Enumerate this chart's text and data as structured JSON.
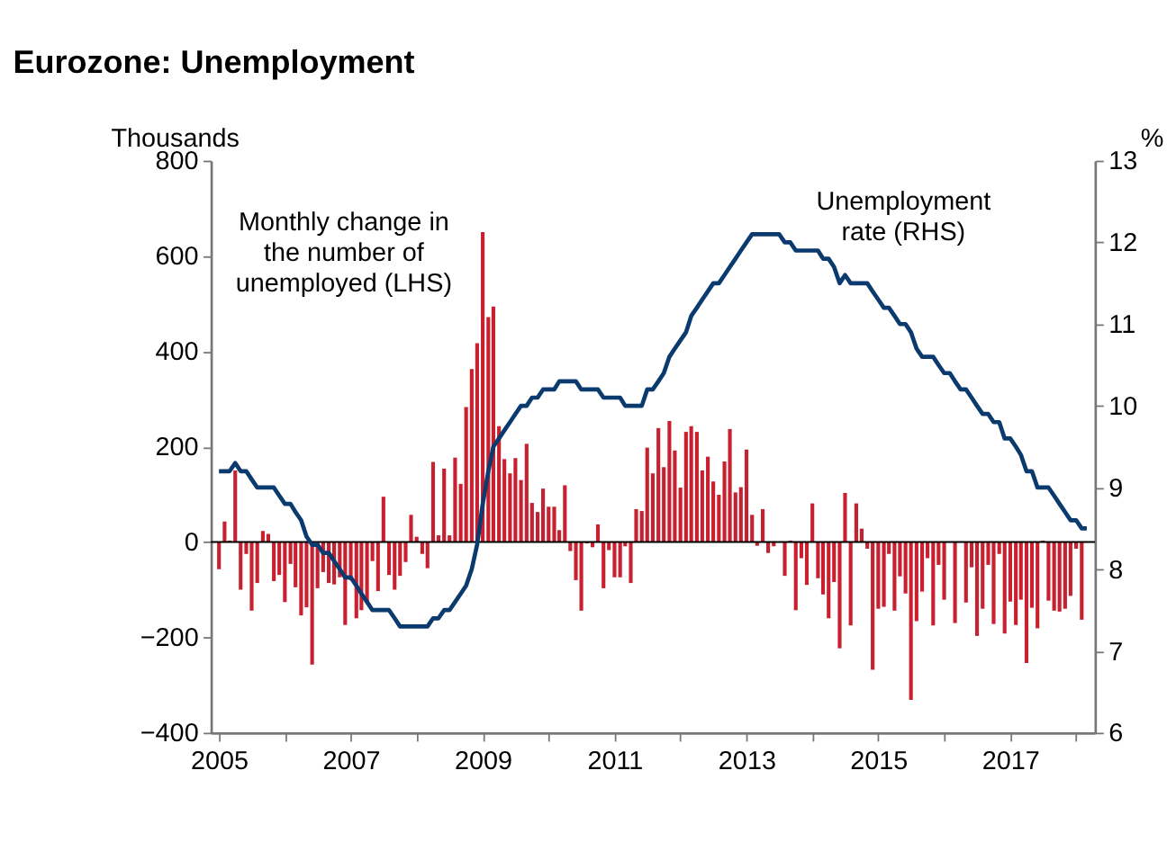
{
  "chart_data": {
    "type": "bar",
    "title": "Eurozone: Unemployment",
    "ylabel": "Thousands",
    "y2label": "%",
    "x": [
      "2005-01",
      "2005-02",
      "2005-03",
      "2005-04",
      "2005-05",
      "2005-06",
      "2005-07",
      "2005-08",
      "2005-09",
      "2005-10",
      "2005-11",
      "2005-12",
      "2006-01",
      "2006-02",
      "2006-03",
      "2006-04",
      "2006-05",
      "2006-06",
      "2006-07",
      "2006-08",
      "2006-09",
      "2006-10",
      "2006-11",
      "2006-12",
      "2007-01",
      "2007-02",
      "2007-03",
      "2007-04",
      "2007-05",
      "2007-06",
      "2007-07",
      "2007-08",
      "2007-09",
      "2007-10",
      "2007-11",
      "2007-12",
      "2008-01",
      "2008-02",
      "2008-03",
      "2008-04",
      "2008-05",
      "2008-06",
      "2008-07",
      "2008-08",
      "2008-09",
      "2008-10",
      "2008-11",
      "2008-12",
      "2009-01",
      "2009-02",
      "2009-03",
      "2009-04",
      "2009-05",
      "2009-06",
      "2009-07",
      "2009-08",
      "2009-09",
      "2009-10",
      "2009-11",
      "2009-12",
      "2010-01",
      "2010-02",
      "2010-03",
      "2010-04",
      "2010-05",
      "2010-06",
      "2010-07",
      "2010-08",
      "2010-09",
      "2010-10",
      "2010-11",
      "2010-12",
      "2011-01",
      "2011-02",
      "2011-03",
      "2011-04",
      "2011-05",
      "2011-06",
      "2011-07",
      "2011-08",
      "2011-09",
      "2011-10",
      "2011-11",
      "2011-12",
      "2012-01",
      "2012-02",
      "2012-03",
      "2012-04",
      "2012-05",
      "2012-06",
      "2012-07",
      "2012-08",
      "2012-09",
      "2012-10",
      "2012-11",
      "2012-12",
      "2013-01",
      "2013-02",
      "2013-03",
      "2013-04",
      "2013-05",
      "2013-06",
      "2013-07",
      "2013-08",
      "2013-09",
      "2013-10",
      "2013-11",
      "2013-12",
      "2014-01",
      "2014-02",
      "2014-03",
      "2014-04",
      "2014-05",
      "2014-06",
      "2014-07",
      "2014-08",
      "2014-09",
      "2014-10",
      "2014-11",
      "2014-12",
      "2015-01",
      "2015-02",
      "2015-03",
      "2015-04",
      "2015-05",
      "2015-06",
      "2015-07",
      "2015-08",
      "2015-09",
      "2015-10",
      "2015-11",
      "2015-12",
      "2016-01",
      "2016-02",
      "2016-03",
      "2016-04",
      "2016-05",
      "2016-06",
      "2016-07",
      "2016-08",
      "2016-09",
      "2016-10",
      "2016-11",
      "2016-12",
      "2017-01",
      "2017-02",
      "2017-03",
      "2017-04",
      "2017-05",
      "2017-06",
      "2017-07",
      "2017-08",
      "2017-09",
      "2017-10",
      "2017-11",
      "2017-12",
      "2018-01",
      "2018-02",
      "2018-03"
    ],
    "series": [
      {
        "name": "Monthly change in the number of unemployed (LHS)",
        "color": "#c8202f",
        "values": [
          -57,
          43,
          3,
          150,
          -100,
          -25,
          -144,
          -86,
          23,
          17,
          -82,
          -69,
          -126,
          -46,
          -95,
          -154,
          -137,
          -257,
          -97,
          -63,
          -86,
          -89,
          -74,
          -174,
          -80,
          -160,
          -143,
          -126,
          -40,
          -103,
          95,
          -69,
          -100,
          -71,
          -42,
          57,
          11,
          -25,
          -55,
          168,
          14,
          154,
          14,
          177,
          122,
          283,
          363,
          417,
          650,
          472,
          494,
          243,
          174,
          144,
          176,
          130,
          206,
          82,
          63,
          112,
          74,
          74,
          25,
          119,
          -19,
          -80,
          -144,
          -3,
          -11,
          37,
          -97,
          -17,
          -74,
          -74,
          -9,
          -86,
          69,
          65,
          198,
          144,
          239,
          157,
          254,
          192,
          114,
          231,
          243,
          231,
          150,
          179,
          127,
          99,
          169,
          237,
          104,
          115,
          194,
          57,
          -8,
          69,
          -23,
          -9,
          0,
          -71,
          3,
          -143,
          -34,
          -90,
          81,
          -76,
          -110,
          -160,
          -84,
          -223,
          103,
          -175,
          81,
          28,
          -14,
          -268,
          -140,
          -136,
          -25,
          -144,
          -72,
          -108,
          -331,
          -166,
          -104,
          -34,
          -175,
          -48,
          -121,
          0,
          -170,
          1,
          -127,
          -53,
          -197,
          -140,
          -48,
          -172,
          -25,
          -192,
          -125,
          -174,
          -121,
          -254,
          -138,
          -181,
          3,
          -123,
          -144,
          -146,
          -140,
          -113,
          -14,
          -163,
          null
        ]
      },
      {
        "name": "Unemployment rate (RHS)",
        "type": "line",
        "axis": "y2",
        "color": "#0b3a6e",
        "values": [
          9.2,
          9.2,
          9.2,
          9.3,
          9.2,
          9.2,
          9.1,
          9.0,
          9.0,
          9.0,
          9.0,
          8.9,
          8.8,
          8.8,
          8.7,
          8.6,
          8.4,
          8.3,
          8.3,
          8.2,
          8.2,
          8.1,
          8.0,
          7.9,
          7.9,
          7.8,
          7.7,
          7.6,
          7.5,
          7.5,
          7.5,
          7.5,
          7.4,
          7.3,
          7.3,
          7.3,
          7.3,
          7.3,
          7.3,
          7.4,
          7.4,
          7.5,
          7.5,
          7.6,
          7.7,
          7.8,
          8.0,
          8.3,
          8.8,
          9.2,
          9.5,
          9.6,
          9.7,
          9.8,
          9.9,
          10.0,
          10.0,
          10.1,
          10.1,
          10.2,
          10.2,
          10.2,
          10.3,
          10.3,
          10.3,
          10.3,
          10.2,
          10.2,
          10.2,
          10.2,
          10.1,
          10.1,
          10.1,
          10.1,
          10.0,
          10.0,
          10.0,
          10.0,
          10.2,
          10.2,
          10.3,
          10.4,
          10.6,
          10.7,
          10.8,
          10.9,
          11.1,
          11.2,
          11.3,
          11.4,
          11.5,
          11.5,
          11.6,
          11.7,
          11.8,
          11.9,
          12.0,
          12.1,
          12.1,
          12.1,
          12.1,
          12.1,
          12.1,
          12.0,
          12.0,
          11.9,
          11.9,
          11.9,
          11.9,
          11.9,
          11.8,
          11.8,
          11.7,
          11.5,
          11.6,
          11.5,
          11.5,
          11.5,
          11.5,
          11.4,
          11.3,
          11.2,
          11.2,
          11.1,
          11.0,
          11.0,
          10.9,
          10.7,
          10.6,
          10.6,
          10.6,
          10.5,
          10.4,
          10.4,
          10.3,
          10.2,
          10.2,
          10.1,
          10.0,
          9.9,
          9.9,
          9.8,
          9.8,
          9.6,
          9.6,
          9.5,
          9.4,
          9.2,
          9.2,
          9.0,
          9.0,
          9.0,
          8.9,
          8.8,
          8.7,
          8.6,
          8.6,
          8.5,
          8.5
        ]
      }
    ],
    "xlim": [
      "2005-01",
      "2018-03"
    ],
    "xticks": [
      "2005",
      {
        "value": "2006",
        "label": null
      },
      "2007",
      {
        "value": "2008",
        "label": null
      },
      "2009",
      {
        "value": "2010",
        "label": null
      },
      "2011",
      {
        "value": "2012",
        "label": null
      },
      "2013",
      {
        "value": "2014",
        "label": null
      },
      "2015",
      {
        "value": "2016",
        "label": null
      },
      "2017",
      {
        "value": "2018",
        "label": null
      }
    ],
    "ylim": [
      -400,
      800
    ],
    "yticks": [
      -400,
      -200,
      0,
      200,
      400,
      600,
      800
    ],
    "y2lim": [
      6,
      13
    ],
    "y2ticks": [
      6,
      7,
      8,
      9,
      10,
      11,
      12,
      13
    ],
    "ref_lines": [
      {
        "axis": "y",
        "value": 0,
        "color": "#000000"
      }
    ],
    "grid": false
  }
}
